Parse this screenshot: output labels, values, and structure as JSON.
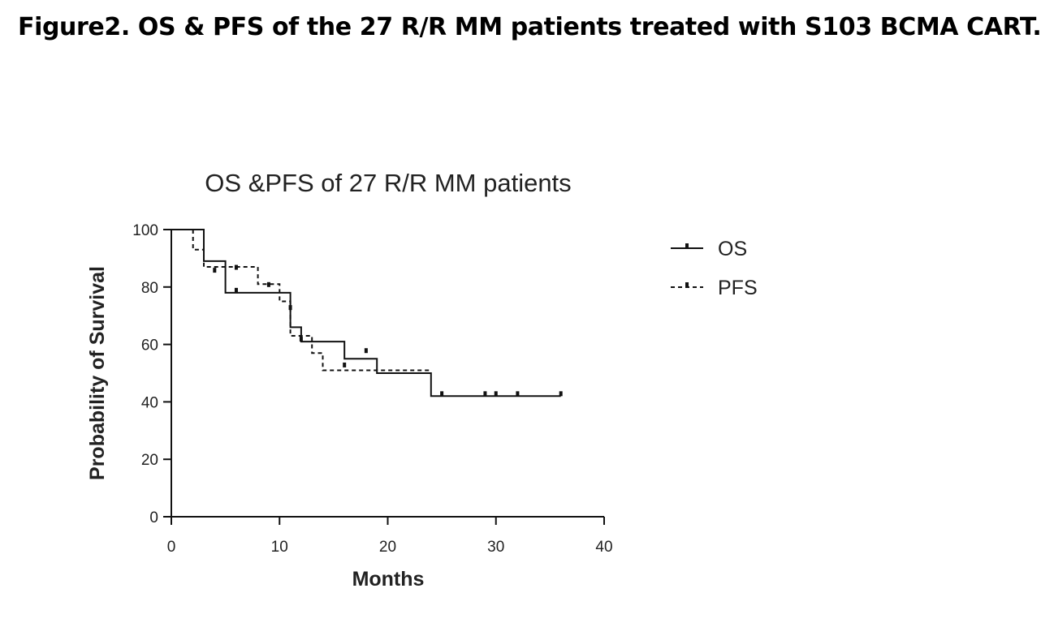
{
  "figure": {
    "caption": "Figure2. OS & PFS of the 27 R/R MM patients treated with S103 BCMA CART."
  },
  "chart_data": {
    "type": "line",
    "subtype": "kaplan-meier-step",
    "title": "OS &PFS of 27 R/R MM patients",
    "xlabel": "Months",
    "ylabel": "Probability of Survival",
    "xlim": [
      0,
      40
    ],
    "ylim": [
      0,
      100
    ],
    "xticks": [
      0,
      10,
      20,
      30,
      40
    ],
    "yticks": [
      0,
      20,
      40,
      60,
      80,
      100
    ],
    "grid": false,
    "legend_position": "top-right",
    "series": [
      {
        "name": "OS",
        "line_style": "solid",
        "color": "#111111",
        "steps": [
          [
            0,
            100
          ],
          [
            3,
            100
          ],
          [
            3,
            89
          ],
          [
            5,
            89
          ],
          [
            5,
            78
          ],
          [
            11,
            78
          ],
          [
            11,
            66
          ],
          [
            12,
            66
          ],
          [
            12,
            61
          ],
          [
            16,
            61
          ],
          [
            16,
            55
          ],
          [
            19,
            55
          ],
          [
            19,
            50
          ],
          [
            24,
            50
          ],
          [
            24,
            42
          ],
          [
            36,
            42
          ]
        ],
        "censored": [
          [
            6,
            78
          ],
          [
            11,
            72
          ],
          [
            25,
            42
          ],
          [
            29,
            42
          ],
          [
            30,
            42
          ],
          [
            32,
            42
          ],
          [
            36,
            42
          ]
        ]
      },
      {
        "name": "PFS",
        "line_style": "dashed",
        "color": "#111111",
        "steps": [
          [
            2,
            100
          ],
          [
            2,
            93
          ],
          [
            3,
            93
          ],
          [
            3,
            87
          ],
          [
            8,
            87
          ],
          [
            8,
            81
          ],
          [
            10,
            81
          ],
          [
            10,
            75
          ],
          [
            11,
            75
          ],
          [
            11,
            63
          ],
          [
            13,
            63
          ],
          [
            13,
            57
          ],
          [
            14,
            57
          ],
          [
            14,
            51
          ],
          [
            24,
            51
          ]
        ],
        "censored": [
          [
            4,
            85
          ],
          [
            6,
            86
          ],
          [
            9,
            80
          ],
          [
            12,
            61
          ],
          [
            16,
            52
          ],
          [
            18,
            57
          ]
        ]
      }
    ]
  }
}
